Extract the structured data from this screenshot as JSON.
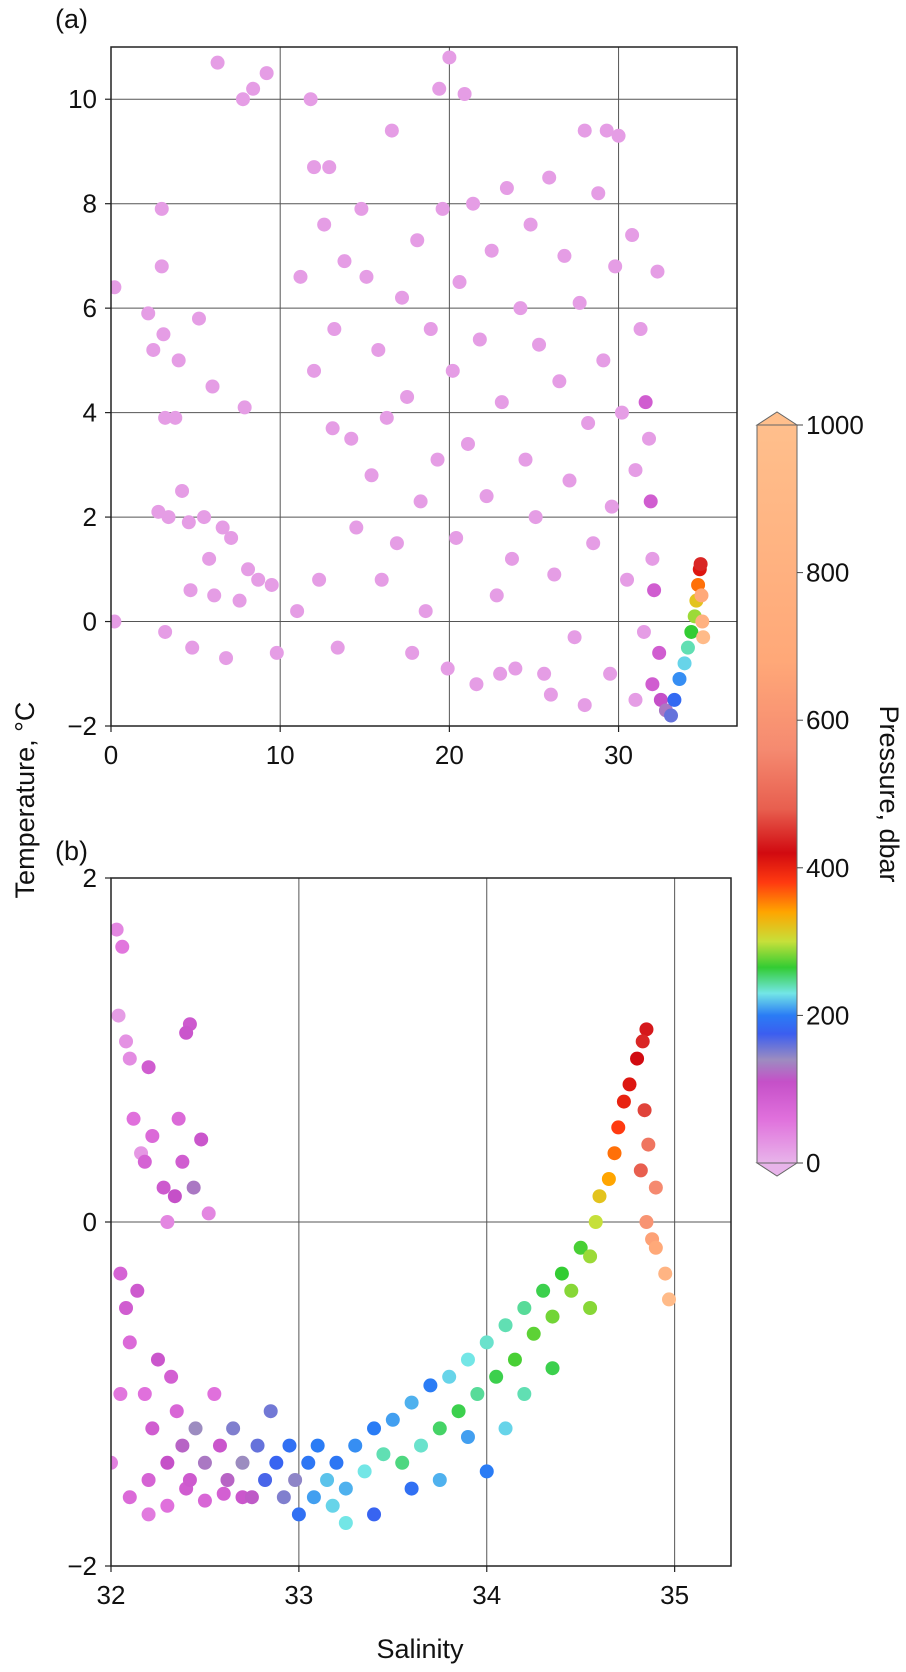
{
  "figure": {
    "ylabel": "Temperature, °C",
    "xlabel": "Salinity",
    "colorbar": {
      "label": "Pressure, dbar",
      "ticks": [
        0,
        200,
        400,
        600,
        800,
        1000
      ],
      "range": [
        0,
        1000
      ],
      "colormap": [
        {
          "p": 0,
          "color": "#e8b4ea"
        },
        {
          "p": 60,
          "color": "#e070dc"
        },
        {
          "p": 110,
          "color": "#c550c8"
        },
        {
          "p": 140,
          "color": "#9c8cc0"
        },
        {
          "p": 175,
          "color": "#3b5ef0"
        },
        {
          "p": 200,
          "color": "#2a7cf5"
        },
        {
          "p": 230,
          "color": "#73e6e6"
        },
        {
          "p": 265,
          "color": "#33cc33"
        },
        {
          "p": 300,
          "color": "#c6e03a"
        },
        {
          "p": 340,
          "color": "#ffa500"
        },
        {
          "p": 380,
          "color": "#ff3a10"
        },
        {
          "p": 420,
          "color": "#d10a10"
        },
        {
          "p": 480,
          "color": "#e85f4f"
        },
        {
          "p": 560,
          "color": "#f58a70"
        },
        {
          "p": 680,
          "color": "#ffa878"
        },
        {
          "p": 1000,
          "color": "#ffbf8c"
        }
      ]
    }
  },
  "chart_data": [
    {
      "panel_label": "(a)",
      "type": "scatter",
      "xlabel": "Salinity",
      "ylabel": "Temperature, °C",
      "xlim": [
        0,
        37
      ],
      "ylim": [
        -2,
        11
      ],
      "xticks": [
        0,
        10,
        20,
        30
      ],
      "yticks": [
        -2,
        0,
        2,
        4,
        6,
        8,
        10
      ],
      "grid": true,
      "color_by": "Pressure, dbar",
      "points": [
        [
          0.2,
          6.4,
          20
        ],
        [
          0.2,
          0.0,
          20
        ],
        [
          2.2,
          5.9,
          20
        ],
        [
          2.5,
          5.2,
          20
        ],
        [
          2.8,
          2.1,
          20
        ],
        [
          3.0,
          7.9,
          20
        ],
        [
          3.0,
          6.8,
          20
        ],
        [
          3.1,
          5.5,
          20
        ],
        [
          3.2,
          3.9,
          20
        ],
        [
          3.4,
          2.0,
          20
        ],
        [
          3.8,
          3.9,
          20
        ],
        [
          3.2,
          -0.2,
          20
        ],
        [
          4.0,
          5.0,
          20
        ],
        [
          4.2,
          2.5,
          20
        ],
        [
          4.6,
          1.9,
          20
        ],
        [
          4.7,
          0.6,
          20
        ],
        [
          4.8,
          -0.5,
          20
        ],
        [
          5.2,
          5.8,
          20
        ],
        [
          5.5,
          2.0,
          20
        ],
        [
          5.8,
          1.2,
          20
        ],
        [
          6.0,
          4.5,
          20
        ],
        [
          6.1,
          0.5,
          20
        ],
        [
          6.3,
          10.7,
          20
        ],
        [
          6.6,
          1.8,
          20
        ],
        [
          6.8,
          -0.7,
          20
        ],
        [
          7.1,
          1.6,
          20
        ],
        [
          7.6,
          0.4,
          20
        ],
        [
          7.8,
          10.0,
          20
        ],
        [
          7.9,
          4.1,
          20
        ],
        [
          8.1,
          1.0,
          20
        ],
        [
          8.4,
          10.2,
          20
        ],
        [
          8.7,
          0.8,
          20
        ],
        [
          9.2,
          10.5,
          20
        ],
        [
          9.5,
          0.7,
          20
        ],
        [
          9.8,
          -0.6,
          20
        ],
        [
          11.0,
          0.2,
          20
        ],
        [
          11.2,
          6.6,
          20
        ],
        [
          11.8,
          10.0,
          20
        ],
        [
          12.0,
          8.7,
          20
        ],
        [
          12.0,
          4.8,
          20
        ],
        [
          12.3,
          0.8,
          20
        ],
        [
          12.6,
          7.6,
          20
        ],
        [
          12.9,
          8.7,
          20
        ],
        [
          13.1,
          3.7,
          20
        ],
        [
          13.2,
          5.6,
          20
        ],
        [
          13.4,
          -0.5,
          20
        ],
        [
          13.8,
          6.9,
          20
        ],
        [
          14.2,
          3.5,
          20
        ],
        [
          14.5,
          1.8,
          20
        ],
        [
          14.8,
          7.9,
          20
        ],
        [
          15.1,
          6.6,
          20
        ],
        [
          15.4,
          2.8,
          20
        ],
        [
          15.8,
          5.2,
          20
        ],
        [
          16.0,
          0.8,
          20
        ],
        [
          16.3,
          3.9,
          20
        ],
        [
          16.6,
          9.4,
          20
        ],
        [
          16.9,
          1.5,
          20
        ],
        [
          17.2,
          6.2,
          20
        ],
        [
          17.5,
          4.3,
          20
        ],
        [
          17.8,
          -0.6,
          20
        ],
        [
          18.1,
          7.3,
          20
        ],
        [
          18.3,
          2.3,
          20
        ],
        [
          18.6,
          0.2,
          20
        ],
        [
          18.9,
          5.6,
          20
        ],
        [
          19.3,
          3.1,
          20
        ],
        [
          19.4,
          10.2,
          20
        ],
        [
          19.6,
          7.9,
          20
        ],
        [
          19.9,
          -0.9,
          20
        ],
        [
          20.0,
          10.8,
          20
        ],
        [
          20.2,
          4.8,
          20
        ],
        [
          20.4,
          1.6,
          20
        ],
        [
          20.6,
          6.5,
          20
        ],
        [
          20.9,
          10.1,
          20
        ],
        [
          21.1,
          3.4,
          20
        ],
        [
          21.4,
          8.0,
          20
        ],
        [
          21.6,
          -1.2,
          20
        ],
        [
          21.8,
          5.4,
          20
        ],
        [
          22.2,
          2.4,
          20
        ],
        [
          22.5,
          7.1,
          20
        ],
        [
          22.8,
          0.5,
          20
        ],
        [
          23.1,
          4.2,
          20
        ],
        [
          23.4,
          8.3,
          20
        ],
        [
          23.7,
          1.2,
          20
        ],
        [
          23.9,
          -0.9,
          20
        ],
        [
          24.2,
          6.0,
          20
        ],
        [
          24.5,
          3.1,
          20
        ],
        [
          24.8,
          7.6,
          20
        ],
        [
          25.1,
          2.0,
          20
        ],
        [
          25.3,
          5.3,
          20
        ],
        [
          25.6,
          -1.0,
          20
        ],
        [
          25.9,
          8.5,
          20
        ],
        [
          26.2,
          0.9,
          20
        ],
        [
          26.5,
          4.6,
          20
        ],
        [
          26.8,
          7.0,
          20
        ],
        [
          27.1,
          2.7,
          20
        ],
        [
          27.4,
          -0.3,
          20
        ],
        [
          27.7,
          6.1,
          20
        ],
        [
          28.0,
          9.4,
          20
        ],
        [
          28.2,
          3.8,
          20
        ],
        [
          28.5,
          1.5,
          20
        ],
        [
          28.8,
          8.2,
          20
        ],
        [
          29.1,
          5.0,
          20
        ],
        [
          29.3,
          9.4,
          20
        ],
        [
          29.6,
          2.2,
          20
        ],
        [
          29.8,
          6.8,
          20
        ],
        [
          30.0,
          9.3,
          20
        ],
        [
          30.2,
          4.0,
          20
        ],
        [
          30.5,
          0.8,
          20
        ],
        [
          30.8,
          7.4,
          20
        ],
        [
          31.0,
          2.9,
          20
        ],
        [
          31.3,
          5.6,
          20
        ],
        [
          31.5,
          -0.2,
          20
        ],
        [
          31.8,
          3.5,
          20
        ],
        [
          32.0,
          1.2,
          20
        ],
        [
          32.3,
          6.7,
          20
        ],
        [
          29.5,
          -1.0,
          20
        ],
        [
          26.0,
          -1.4,
          20
        ],
        [
          23.0,
          -1.0,
          20
        ],
        [
          28.0,
          -1.6,
          20
        ],
        [
          31.0,
          -1.5,
          20
        ],
        [
          31.6,
          4.2,
          90
        ],
        [
          31.9,
          2.3,
          90
        ],
        [
          32.1,
          0.6,
          90
        ],
        [
          32.4,
          -0.6,
          90
        ],
        [
          32.0,
          -1.2,
          90
        ],
        [
          32.5,
          -1.5,
          110
        ],
        [
          32.8,
          -1.7,
          130
        ],
        [
          33.1,
          -1.8,
          160
        ],
        [
          33.3,
          -1.5,
          185
        ],
        [
          33.6,
          -1.1,
          205
        ],
        [
          33.9,
          -0.8,
          225
        ],
        [
          34.1,
          -0.5,
          240
        ],
        [
          34.3,
          -0.2,
          265
        ],
        [
          34.5,
          0.1,
          290
        ],
        [
          34.6,
          0.4,
          320
        ],
        [
          34.7,
          0.7,
          360
        ],
        [
          34.8,
          1.0,
          410
        ],
        [
          34.85,
          1.1,
          440
        ],
        [
          34.9,
          0.5,
          700
        ],
        [
          34.95,
          0.0,
          800
        ],
        [
          35.0,
          -0.3,
          950
        ]
      ]
    },
    {
      "panel_label": "(b)",
      "type": "scatter",
      "xlabel": "Salinity",
      "ylabel": "Temperature, °C",
      "xlim": [
        32,
        35.3
      ],
      "ylim": [
        -2,
        2
      ],
      "xticks": [
        32,
        33,
        34,
        35
      ],
      "yticks": [
        -2,
        0,
        2
      ],
      "grid": true,
      "color_by": "Pressure, dbar",
      "points": [
        [
          32.03,
          1.7,
          40
        ],
        [
          32.06,
          1.6,
          55
        ],
        [
          32.04,
          1.2,
          20
        ],
        [
          32.08,
          1.05,
          30
        ],
        [
          32.1,
          0.95,
          35
        ],
        [
          32.12,
          0.6,
          60
        ],
        [
          32.16,
          0.4,
          25
        ],
        [
          32.2,
          0.9,
          90
        ],
        [
          32.18,
          0.35,
          80
        ],
        [
          32.22,
          0.5,
          70
        ],
        [
          32.28,
          0.2,
          95
        ],
        [
          32.3,
          0.0,
          40
        ],
        [
          32.36,
          0.6,
          70
        ],
        [
          32.38,
          0.35,
          90
        ],
        [
          32.4,
          1.1,
          100
        ],
        [
          32.42,
          1.15,
          95
        ],
        [
          32.44,
          0.2,
          130
        ],
        [
          32.48,
          0.48,
          100
        ],
        [
          32.52,
          0.05,
          40
        ],
        [
          32.34,
          0.15,
          110
        ],
        [
          32.05,
          -0.3,
          80
        ],
        [
          32.08,
          -0.5,
          90
        ],
        [
          32.1,
          -0.7,
          70
        ],
        [
          32.14,
          -0.4,
          95
        ],
        [
          32.18,
          -1.0,
          60
        ],
        [
          32.22,
          -1.2,
          90
        ],
        [
          32.25,
          -0.8,
          100
        ],
        [
          32.3,
          -1.4,
          110
        ],
        [
          32.32,
          -0.9,
          85
        ],
        [
          32.35,
          -1.1,
          75
        ],
        [
          32.38,
          -1.3,
          120
        ],
        [
          32.42,
          -1.5,
          95
        ],
        [
          32.45,
          -1.2,
          140
        ],
        [
          32.5,
          -1.4,
          130
        ],
        [
          32.55,
          -1.0,
          60
        ],
        [
          32.58,
          -1.3,
          100
        ],
        [
          32.62,
          -1.5,
          120
        ],
        [
          32.65,
          -1.2,
          150
        ],
        [
          32.7,
          -1.4,
          140
        ],
        [
          32.75,
          -1.6,
          115
        ],
        [
          32.78,
          -1.3,
          160
        ],
        [
          32.82,
          -1.5,
          170
        ],
        [
          32.85,
          -1.1,
          155
        ],
        [
          32.88,
          -1.4,
          180
        ],
        [
          32.92,
          -1.6,
          150
        ],
        [
          32.95,
          -1.3,
          190
        ],
        [
          32.98,
          -1.5,
          145
        ],
        [
          33.0,
          -1.7,
          190
        ],
        [
          33.05,
          -1.4,
          195
        ],
        [
          33.08,
          -1.6,
          210
        ],
        [
          33.1,
          -1.3,
          200
        ],
        [
          33.15,
          -1.5,
          220
        ],
        [
          33.18,
          -1.65,
          225
        ],
        [
          33.2,
          -1.4,
          195
        ],
        [
          33.25,
          -1.55,
          215
        ],
        [
          33.3,
          -1.3,
          205
        ],
        [
          33.35,
          -1.45,
          230
        ],
        [
          33.4,
          -1.2,
          200
        ],
        [
          33.45,
          -1.35,
          240
        ],
        [
          33.5,
          -1.15,
          210
        ],
        [
          33.55,
          -1.4,
          250
        ],
        [
          33.6,
          -1.05,
          215
        ],
        [
          33.65,
          -1.3,
          235
        ],
        [
          33.7,
          -0.95,
          200
        ],
        [
          33.75,
          -1.2,
          255
        ],
        [
          33.8,
          -0.9,
          225
        ],
        [
          33.85,
          -1.1,
          260
        ],
        [
          33.9,
          -0.8,
          230
        ],
        [
          33.95,
          -1.0,
          245
        ],
        [
          34.0,
          -0.7,
          235
        ],
        [
          34.05,
          -0.9,
          260
        ],
        [
          34.1,
          -0.6,
          240
        ],
        [
          34.15,
          -0.8,
          270
        ],
        [
          34.2,
          -0.5,
          245
        ],
        [
          34.25,
          -0.65,
          275
        ],
        [
          34.3,
          -0.4,
          260
        ],
        [
          34.35,
          -0.55,
          280
        ],
        [
          34.4,
          -0.3,
          265
        ],
        [
          34.45,
          -0.4,
          285
        ],
        [
          34.5,
          -0.15,
          270
        ],
        [
          34.55,
          -0.2,
          290
        ],
        [
          34.58,
          0.0,
          300
        ],
        [
          34.6,
          0.15,
          320
        ],
        [
          34.65,
          0.25,
          340
        ],
        [
          34.68,
          0.4,
          360
        ],
        [
          34.7,
          0.55,
          380
        ],
        [
          34.73,
          0.7,
          400
        ],
        [
          34.76,
          0.8,
          410
        ],
        [
          34.8,
          0.95,
          420
        ],
        [
          34.83,
          1.05,
          440
        ],
        [
          34.85,
          1.12,
          430
        ],
        [
          34.84,
          0.65,
          460
        ],
        [
          34.82,
          0.3,
          480
        ],
        [
          34.85,
          0.0,
          600
        ],
        [
          34.9,
          -0.15,
          700
        ],
        [
          34.95,
          -0.3,
          850
        ],
        [
          34.97,
          -0.45,
          950
        ],
        [
          34.88,
          -0.1,
          650
        ],
        [
          34.9,
          0.2,
          560
        ],
        [
          34.86,
          0.45,
          520
        ],
        [
          34.0,
          -1.45,
          200
        ],
        [
          33.6,
          -1.55,
          190
        ],
        [
          33.4,
          -1.7,
          180
        ],
        [
          33.9,
          -1.25,
          210
        ],
        [
          34.2,
          -1.0,
          240
        ],
        [
          33.25,
          -1.75,
          230
        ],
        [
          33.75,
          -1.5,
          215
        ],
        [
          34.35,
          -0.85,
          260
        ],
        [
          34.1,
          -1.2,
          225
        ],
        [
          34.55,
          -0.5,
          285
        ],
        [
          32.1,
          -1.6,
          70
        ],
        [
          32.2,
          -1.5,
          80
        ],
        [
          32.3,
          -1.65,
          60
        ],
        [
          32.4,
          -1.55,
          90
        ],
        [
          32.5,
          -1.62,
          75
        ],
        [
          32.6,
          -1.58,
          85
        ],
        [
          32.7,
          -1.6,
          100
        ],
        [
          32.2,
          -1.7,
          50
        ],
        [
          32.0,
          -1.4,
          45
        ],
        [
          32.05,
          -1.0,
          55
        ]
      ]
    }
  ]
}
